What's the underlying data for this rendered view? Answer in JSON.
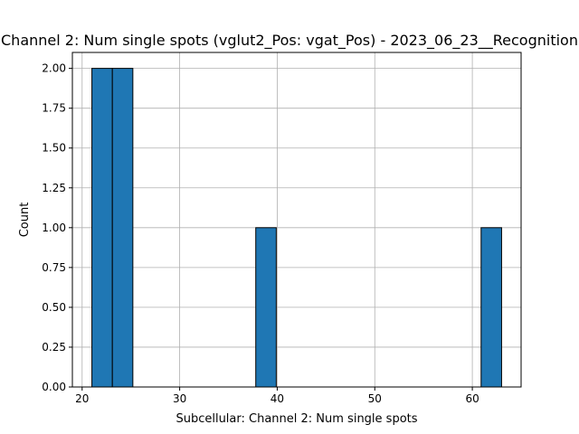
{
  "chart_data": {
    "type": "bar",
    "title": "Channel 2: Num single spots (vglut2_Pos: vgat_Pos) - 2023_06_23__Recognition",
    "xlabel": "Subcellular: Channel 2: Num single spots",
    "ylabel": "Count",
    "xlim": [
      19,
      65
    ],
    "ylim": [
      0,
      2.1
    ],
    "x_ticks": [
      20,
      30,
      40,
      50,
      60
    ],
    "y_ticks": [
      0.0,
      0.25,
      0.5,
      0.75,
      1.0,
      1.25,
      1.5,
      1.75,
      2.0
    ],
    "grid": true,
    "bins": [
      {
        "x0": 21.0,
        "x1": 23.1,
        "count": 2
      },
      {
        "x0": 23.1,
        "x1": 25.2,
        "count": 2
      },
      {
        "x0": 37.8,
        "x1": 39.9,
        "count": 1
      },
      {
        "x0": 60.9,
        "x1": 63.0,
        "count": 1
      }
    ],
    "bar_color": "#1f77b4",
    "edge_color": "#000000",
    "grid_color": "#b0b0b0"
  }
}
